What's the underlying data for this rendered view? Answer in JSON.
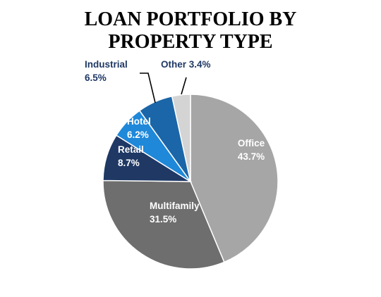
{
  "chart_data": {
    "type": "pie",
    "title_line1": "LOAN PORTFOLIO BY",
    "title_line2": "PROPERTY TYPE",
    "slices": [
      {
        "name": "Office",
        "value": 43.7,
        "label": "43.7%",
        "color": "#a6a6a6",
        "label_color": "#ffffff"
      },
      {
        "name": "Multifamily",
        "value": 31.5,
        "label": "31.5%",
        "color": "#6e6e6e",
        "label_color": "#ffffff"
      },
      {
        "name": "Retail",
        "value": 8.7,
        "label": "8.7%",
        "color": "#1f3864",
        "label_color": "#ffffff"
      },
      {
        "name": "Hotel",
        "value": 6.2,
        "label": "6.2%",
        "color": "#1f88d9",
        "label_color": "#ffffff"
      },
      {
        "name": "Industrial",
        "value": 6.5,
        "label": "6.5%",
        "color": "#1b66a8",
        "label_color": "#1f3864"
      },
      {
        "name": "Other",
        "value": 3.4,
        "label": "3.4%",
        "color": "#d4d4d4",
        "label_color": "#1f3864"
      }
    ]
  }
}
